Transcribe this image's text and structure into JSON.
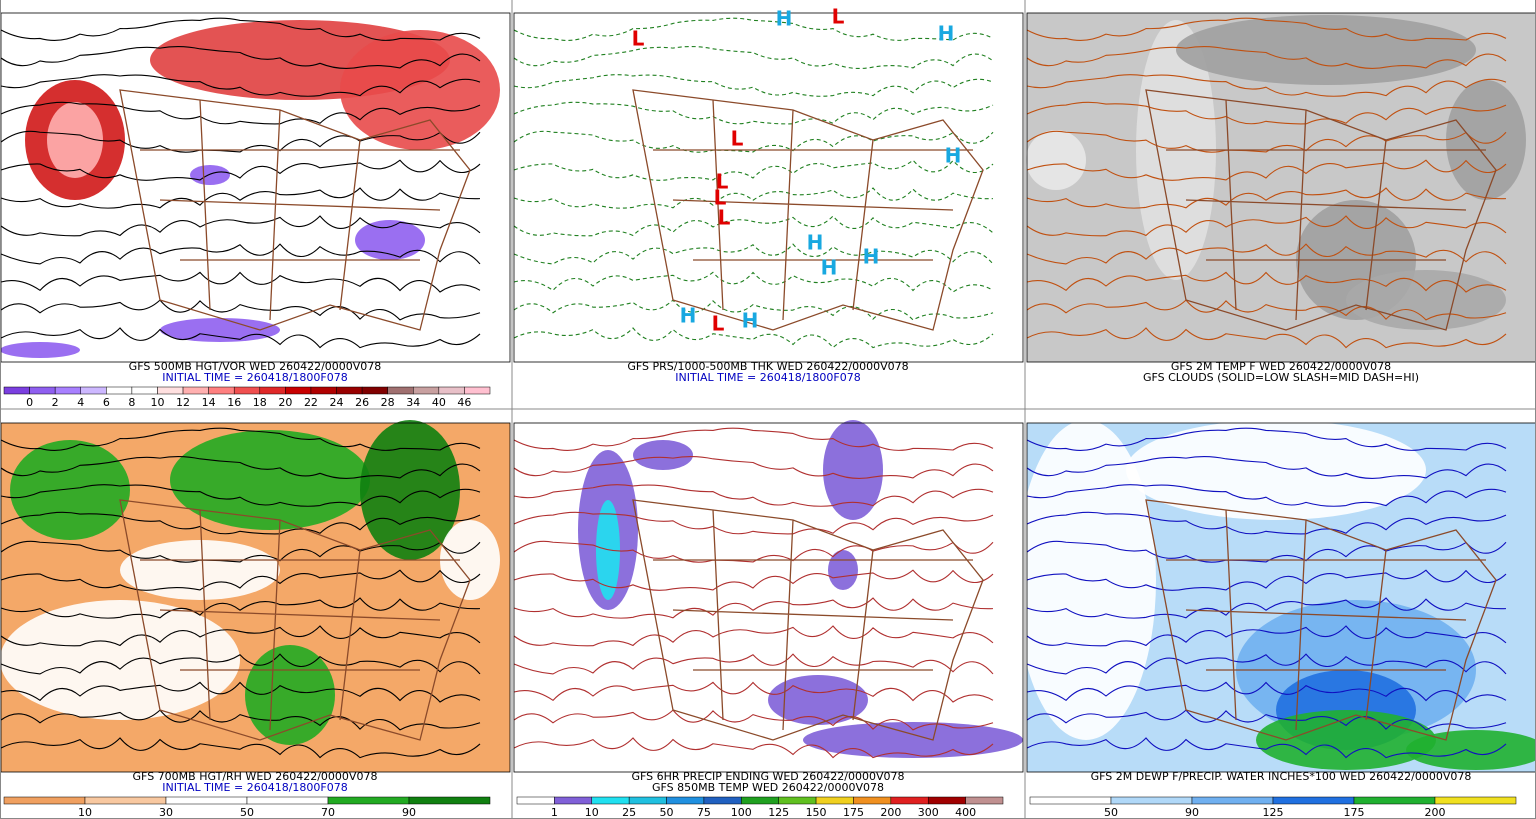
{
  "panels": [
    {
      "captions": [
        {
          "text": "GFS 500MB HGT/VOR WED 260422/0000V078",
          "color": "#000000"
        },
        {
          "text": "INITIAL TIME = 260418/1800F078",
          "color": "#0000c0"
        }
      ],
      "colorbar": {
        "labels": [
          0,
          2,
          4,
          6,
          8,
          10,
          12,
          14,
          16,
          18,
          20,
          22,
          24,
          26,
          28,
          34,
          40,
          46
        ],
        "colors": [
          "#7b3fe0",
          "#8f5ff0",
          "#a880ff",
          "#cdb8ff",
          "#ffffff",
          "#ffffff",
          "#ffe0e0",
          "#ffb0b0",
          "#ff8080",
          "#f05050",
          "#e02828",
          "#c80000",
          "#b00000",
          "#980000",
          "#800000",
          "#a07070",
          "#c8a0a0",
          "#e8c0c8",
          "#ffc0d0"
        ]
      }
    },
    {
      "captions": [
        {
          "text": "GFS PRS/1000-500MB THK WED 260422/0000V078",
          "color": "#000000"
        },
        {
          "text": "INITIAL TIME = 260418/1800F078",
          "color": "#0000c0"
        }
      ],
      "symbols": [
        {
          "text": "L",
          "color": "#e00000"
        },
        {
          "text": "L",
          "color": "#e00000"
        },
        {
          "text": "L",
          "color": "#e00000"
        },
        {
          "text": "L",
          "color": "#e00000"
        },
        {
          "text": "L",
          "color": "#e00000"
        },
        {
          "text": "L",
          "color": "#e00000"
        },
        {
          "text": "L",
          "color": "#e00000"
        },
        {
          "text": "H",
          "color": "#18a8e0"
        },
        {
          "text": "H",
          "color": "#18a8e0"
        },
        {
          "text": "H",
          "color": "#18a8e0"
        },
        {
          "text": "H",
          "color": "#18a8e0"
        },
        {
          "text": "H",
          "color": "#18a8e0"
        },
        {
          "text": "H",
          "color": "#18a8e0"
        },
        {
          "text": "H",
          "color": "#18a8e0"
        },
        {
          "text": "H",
          "color": "#18a8e0"
        }
      ]
    },
    {
      "captions": [
        {
          "text": "GFS 2M TEMP F WED 260422/0000V078",
          "color": "#000000"
        },
        {
          "text": "GFS CLOUDS (SOLID=LOW SLASH=MID DASH=HI)",
          "color": "#000000"
        }
      ]
    },
    {
      "captions": [
        {
          "text": "GFS 700MB HGT/RH WED 260422/0000V078",
          "color": "#000000"
        },
        {
          "text": "INITIAL TIME = 260418/1800F078",
          "color": "#0000c0"
        }
      ],
      "colorbar": {
        "labels": [
          10,
          30,
          50,
          70,
          90
        ],
        "colors": [
          "#f0a060",
          "#f8c8a0",
          "#ffffff",
          "#ffffff",
          "#22aa22",
          "#108010"
        ]
      }
    },
    {
      "captions": [
        {
          "text": "GFS 6HR PRECIP ENDING WED 260422/0000V078",
          "color": "#000000"
        },
        {
          "text": "GFS 850MB TEMP WED 260422/0000V078",
          "color": "#000000"
        }
      ],
      "colorbar": {
        "labels": [
          1,
          10,
          25,
          50,
          75,
          100,
          125,
          150,
          175,
          200,
          300,
          400
        ],
        "colors": [
          "#ffffff",
          "#8060d8",
          "#20e0f0",
          "#20c0e0",
          "#2090e0",
          "#2060c0",
          "#20a020",
          "#60c020",
          "#f0d020",
          "#f09020",
          "#e02020",
          "#a00000",
          "#c09090"
        ]
      }
    },
    {
      "captions": [
        {
          "text": "GFS 2M DEWP F/PRECIP. WATER INCHES*100 WED 260422/0000V078",
          "color": "#000000"
        }
      ],
      "colorbar": {
        "labels": [
          50,
          90,
          125,
          175,
          200
        ],
        "colors": [
          "#ffffff",
          "#b0d8f8",
          "#70b0f0",
          "#2070e0",
          "#20b030",
          "#f0e020"
        ]
      }
    }
  ]
}
